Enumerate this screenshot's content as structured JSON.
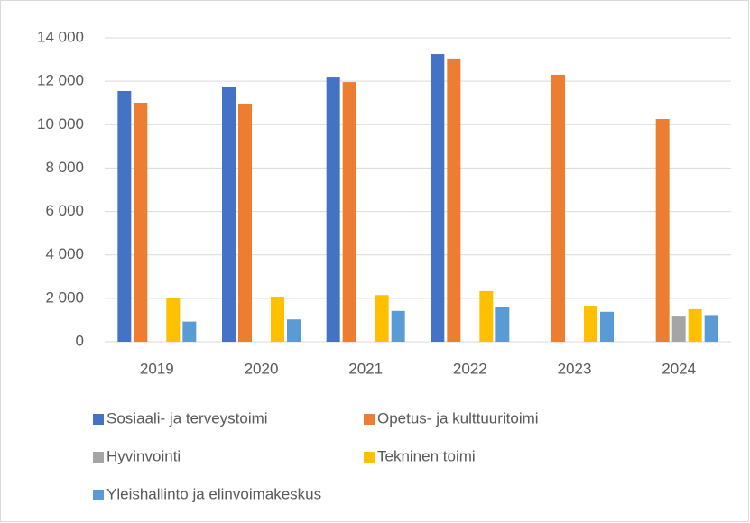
{
  "chart_data": {
    "type": "bar",
    "categories": [
      "2019",
      "2020",
      "2021",
      "2022",
      "2023",
      "2024"
    ],
    "series": [
      {
        "name": "Sosiaali- ja terveystoimi",
        "color": "#4472c4",
        "values": [
          11550,
          11750,
          12210,
          13250,
          null,
          null
        ]
      },
      {
        "name": "Opetus- ja kulttuuritoimi",
        "color": "#ed7d31",
        "values": [
          11010,
          10970,
          11960,
          13050,
          12300,
          10260
        ]
      },
      {
        "name": "Hyvinvointi",
        "color": "#a5a5a5",
        "values": [
          null,
          null,
          null,
          null,
          null,
          1200
        ]
      },
      {
        "name": "Tekninen toimi",
        "color": "#ffc000",
        "values": [
          2000,
          2080,
          2150,
          2330,
          1660,
          1500
        ]
      },
      {
        "name": "Yleishallinto ja elinvoimakeskus",
        "color": "#5b9bd5",
        "values": [
          930,
          1030,
          1420,
          1580,
          1380,
          1230
        ]
      }
    ],
    "ylim": [
      0,
      14000
    ],
    "yticks": [
      0,
      {
        "value": 2000,
        "label": "2 000"
      },
      {
        "value": 4000,
        "label": "4 000"
      },
      {
        "value": 6000,
        "label": "6 000"
      },
      {
        "value": 8000,
        "label": "8 000"
      },
      {
        "value": 10000,
        "label": "10 000"
      },
      {
        "value": 12000,
        "label": "12 000"
      },
      {
        "value": 14000,
        "label": "14 000"
      }
    ],
    "grid": true,
    "legend": "bottom"
  }
}
